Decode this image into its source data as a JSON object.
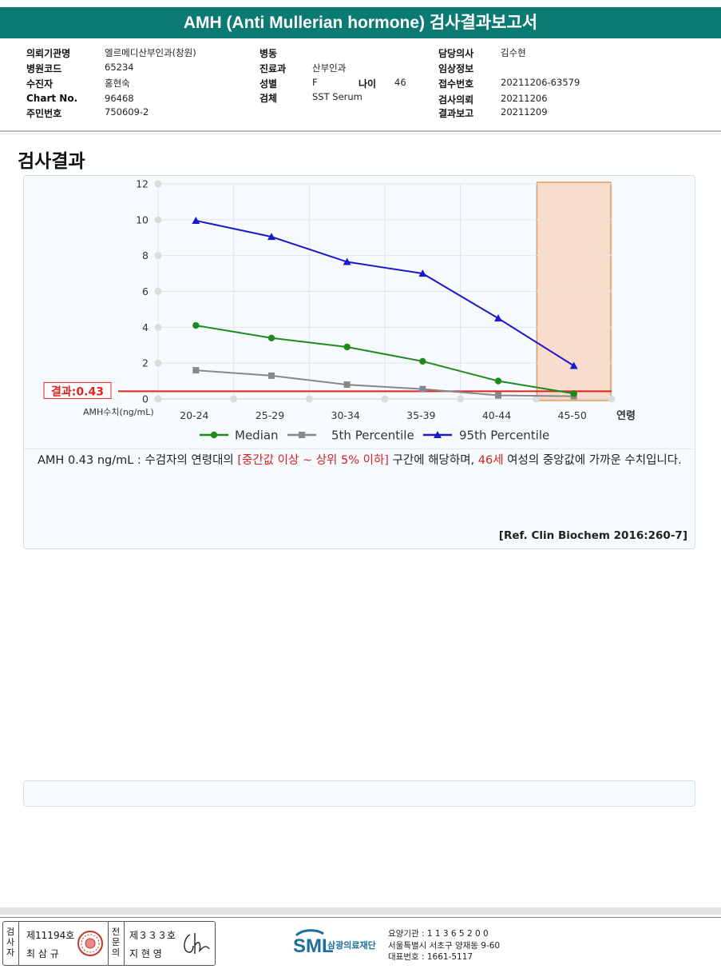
{
  "report": {
    "title": "AMH (Anti Mullerian hormone) 검사결과보고서"
  },
  "patient_info": {
    "col1": [
      {
        "label": "의뢰기관명",
        "value": "엘르메디산부인과(창원)"
      },
      {
        "label": "병원코드",
        "value": "65234"
      },
      {
        "label": "수진자",
        "value": "홍현숙"
      },
      {
        "label": "Chart No.",
        "value": "96468"
      },
      {
        "label": "주민번호",
        "value": "750609-2"
      }
    ],
    "col2": [
      {
        "label": "병동",
        "value": ""
      },
      {
        "label": "진료과",
        "value": "산부인과"
      },
      {
        "label": "성별",
        "value": "F"
      },
      {
        "label": "검체",
        "value": "SST Serum"
      }
    ],
    "age": {
      "label": "나이",
      "value": "46"
    },
    "col3": [
      {
        "label": "담당의사",
        "value": "김수현"
      },
      {
        "label": "임상정보",
        "value": ""
      },
      {
        "label": "접수번호",
        "value": "20211206-63579"
      },
      {
        "label": "검사의뢰",
        "value": "20211206"
      },
      {
        "label": "결과보고",
        "value": "20211209"
      }
    ]
  },
  "section_title": "검사결과",
  "chart_data": {
    "type": "line",
    "categories": [
      "20-24",
      "25-29",
      "30-34",
      "35-39",
      "40-44",
      "45-50"
    ],
    "series": [
      {
        "name": "Median",
        "values": [
          4.1,
          3.4,
          2.9,
          2.1,
          1.0,
          0.3
        ],
        "color": "#1e8a1e",
        "marker": "circle"
      },
      {
        "name": "5th Percentile",
        "values": [
          1.6,
          1.3,
          0.8,
          0.55,
          0.2,
          0.15
        ],
        "color": "#888888",
        "marker": "square"
      },
      {
        "name": "95th Percentile",
        "values": [
          9.95,
          9.05,
          7.65,
          7.0,
          4.5,
          1.85
        ],
        "color": "#1a1acc",
        "marker": "triangle"
      }
    ],
    "yticks": [
      "0",
      "2",
      "4",
      "6",
      "8",
      "10",
      "12"
    ],
    "ylim": [
      0,
      12
    ],
    "ylabel": "AMH수치(ng/mL)",
    "xlabel": "연령",
    "result_line": {
      "value": 0.43,
      "label": "결과:0.43",
      "color": "#dd2222"
    },
    "highlight_category": "45-50",
    "highlight_color": "#f9dccb",
    "legend_position": "bottom"
  },
  "interpretation": {
    "part1": "AMH  0.43 ng/mL : 수검자의 연령대의 ",
    "range_text": "[중간값 이상 ~ 상위 5% 이하]",
    "part2": "  구간에 해당하며, ",
    "age_text": "46세",
    "part3": " 여성의 중앙값에 가까운 수치입니다."
  },
  "reference": "[Ref. Clin Biochem 2016:260-7]",
  "footer": {
    "inspector_label": "검사자",
    "inspector_no": "제11194호",
    "inspector_name": "최 삼 규",
    "reviewer_label": "전문의",
    "reviewer_no": "제３３３호",
    "reviewer_name": "지 현 영",
    "logo": "SML",
    "org_name": "삼광의료재단",
    "agency_code": "요양기관 : 1 1 3 6 5 2 0 0",
    "address": "서울특별시 서초구 양재동 9-60",
    "phone": "대표번호 : 1661-5117"
  }
}
